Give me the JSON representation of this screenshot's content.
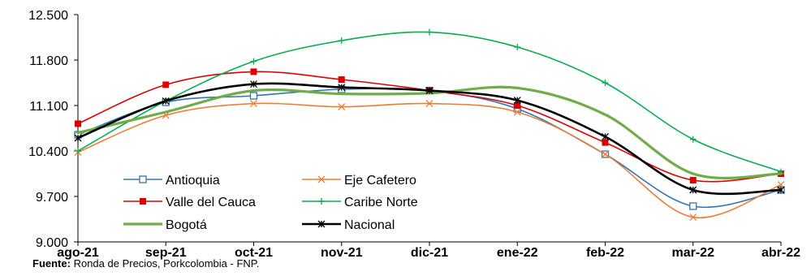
{
  "chart_data": {
    "type": "line",
    "title": "",
    "xlabel": "",
    "ylabel": "",
    "categories": [
      "ago-21",
      "sep-21",
      "oct-21",
      "nov-21",
      "dic-21",
      "ene-22",
      "feb-22",
      "mar-22",
      "abr-22"
    ],
    "ylim": [
      9000,
      12500
    ],
    "yticks": [
      9000,
      9700,
      10400,
      11100,
      11800,
      12500
    ],
    "ytick_labels": [
      "9.000",
      "9.700",
      "10.400",
      "11.100",
      "11.800",
      "12.500"
    ],
    "grid": false,
    "legend_position": "bottom-left-inside",
    "series": [
      {
        "name": "Antioquia",
        "color": "#2E75B6",
        "marker": "square-open",
        "width": 1.6,
        "values": [
          10650,
          11150,
          11250,
          11350,
          11330,
          11050,
          10350,
          9550,
          9800
        ]
      },
      {
        "name": "Eje Cafetero",
        "color": "#ED7D31",
        "marker": "x",
        "width": 1.6,
        "values": [
          10380,
          10950,
          11130,
          11080,
          11130,
          11000,
          10350,
          9380,
          9880
        ]
      },
      {
        "name": "Valle del Cauca",
        "color": "#E00000",
        "marker": "square-filled",
        "width": 1.6,
        "values": [
          10820,
          11420,
          11620,
          11500,
          11330,
          11100,
          10530,
          9950,
          10050
        ]
      },
      {
        "name": "Caribe Norte",
        "color": "#00B050",
        "marker": "plus",
        "width": 1.6,
        "values": [
          10400,
          11170,
          11780,
          12100,
          12230,
          12000,
          11450,
          10580,
          10080
        ]
      },
      {
        "name": "Bogotá",
        "color": "#70AD47",
        "marker": "dash",
        "width": 3.2,
        "values": [
          10680,
          11000,
          11330,
          11280,
          11290,
          11370,
          10960,
          10050,
          10050
        ]
      },
      {
        "name": "Nacional",
        "color": "#000000",
        "marker": "star",
        "width": 2.6,
        "values": [
          10600,
          11170,
          11430,
          11380,
          11330,
          11180,
          10620,
          9800,
          9800
        ]
      }
    ],
    "source_label": "Fuente:",
    "source_text": "Ronda de Precios, Porkcolombia  - FNP."
  }
}
